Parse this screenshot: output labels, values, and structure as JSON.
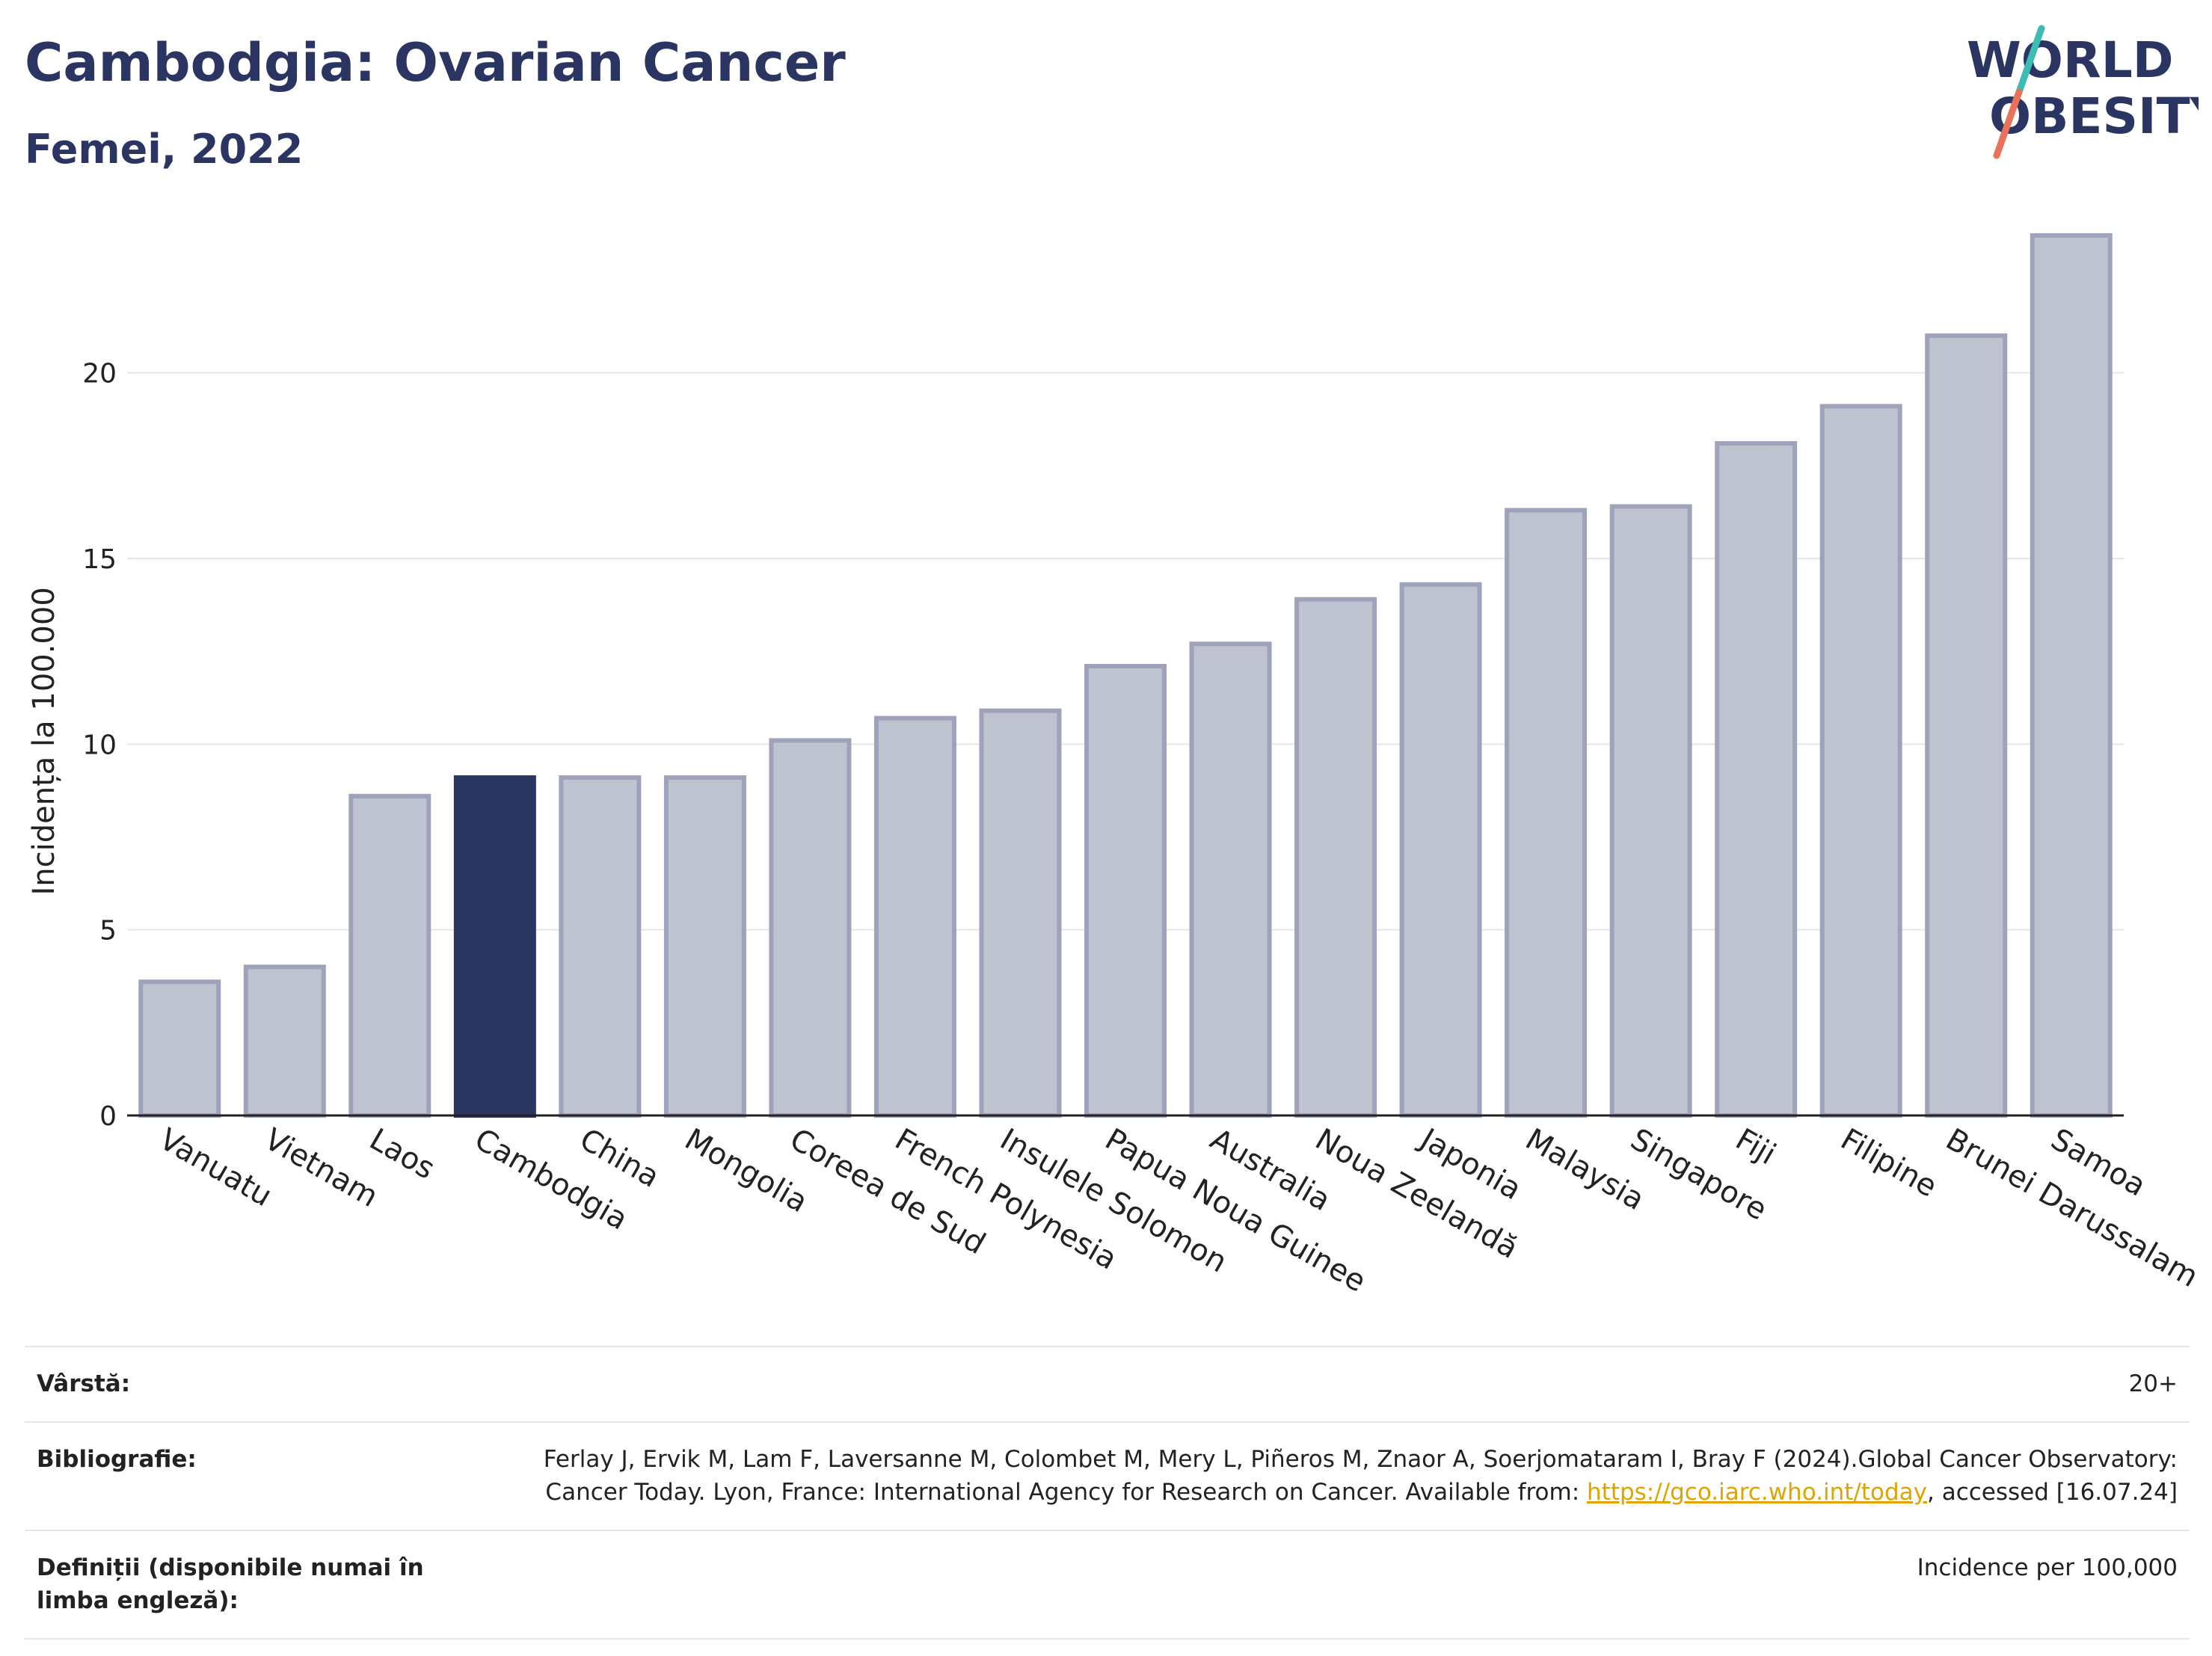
{
  "header": {
    "title": "Cambodgia: Ovarian Cancer",
    "subtitle": "Femei, 2022"
  },
  "logo": {
    "line1": "WORLD",
    "line2": "OBESITY",
    "colors": {
      "text": "#2b3561",
      "slash_top": "#3cbcb4",
      "slash_bottom": "#e8735a"
    }
  },
  "chart_data": {
    "type": "bar",
    "title": "Cambodgia: Ovarian Cancer",
    "subtitle": "Femei, 2022",
    "xlabel": "",
    "ylabel": "Incidența la 100.000",
    "ylim": [
      0,
      24
    ],
    "yticks": [
      0,
      5,
      10,
      15,
      20
    ],
    "grid": true,
    "categories": [
      "Vanuatu",
      "Vietnam",
      "Laos",
      "Cambodgia",
      "China",
      "Mongolia",
      "Coreea de Sud",
      "French Polynesia",
      "Insulele Solomon",
      "Papua Noua Guinee",
      "Australia",
      "Noua Zeelandă",
      "Japonia",
      "Malaysia",
      "Singapore",
      "Fiji",
      "Filipine",
      "Brunei Darussalam",
      "Samoa"
    ],
    "values": [
      3.6,
      4.0,
      8.6,
      9.1,
      9.1,
      9.1,
      10.1,
      10.7,
      10.9,
      12.1,
      12.7,
      13.9,
      14.3,
      16.3,
      16.4,
      18.1,
      19.1,
      21.0,
      23.7
    ],
    "highlight": "Cambodgia",
    "colors": {
      "bar": "#bfc2cf",
      "bar_border": "#9ea3bb",
      "highlight": "#2b3561",
      "axis": "#222222",
      "grid": "#e6e6e6"
    }
  },
  "meta": {
    "age_label": "Vârstă:",
    "age_value": "20+",
    "biblio_label": "Bibliografie:",
    "biblio_text_1": "Ferlay J, Ervik M, Lam F, Laversanne M, Colombet M, Mery L, Piñeros M, Znaor A, Soerjomataram I, Bray F (2024).Global Cancer Observatory: Cancer Today. Lyon, France: International Agency for Research on Cancer. Available from: ",
    "biblio_link": "https://gco.iarc.who.int/today",
    "biblio_text_2": ", accessed [16.07.24]",
    "def_label": "Definiții (disponibile numai în limba engleză):",
    "def_value": "Incidence per 100,000"
  }
}
